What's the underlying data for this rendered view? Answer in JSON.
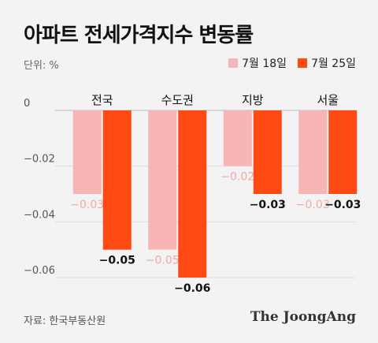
{
  "title": "아파트 전세가격지수 변동률",
  "unit": "단위: %",
  "legend": [
    {
      "label": "7월 18일",
      "color": "#f7b5b5"
    },
    {
      "label": "7월 25일",
      "color": "#ff4a14"
    }
  ],
  "source": "자료: 한국부동산원",
  "brand": "The JoongAng",
  "chart_data": {
    "type": "bar",
    "categories": [
      "전국",
      "수도권",
      "지방",
      "서울"
    ],
    "series": [
      {
        "name": "7월 18일",
        "values": [
          -0.03,
          -0.05,
          -0.02,
          -0.03
        ],
        "labels": [
          "−0.03",
          "−0.05",
          "−0.02",
          "−0.03"
        ]
      },
      {
        "name": "7월 25일",
        "values": [
          -0.05,
          -0.06,
          -0.03,
          -0.03
        ],
        "labels": [
          "−0.05",
          "−0.06",
          "−0.03",
          "−0.03"
        ]
      }
    ],
    "yticks": [
      0,
      -0.02,
      -0.04,
      -0.06
    ],
    "ytick_labels": [
      "0",
      "−0.02",
      "−0.04",
      "−0.06"
    ],
    "ylim": [
      -0.06,
      0
    ],
    "grid": true
  }
}
